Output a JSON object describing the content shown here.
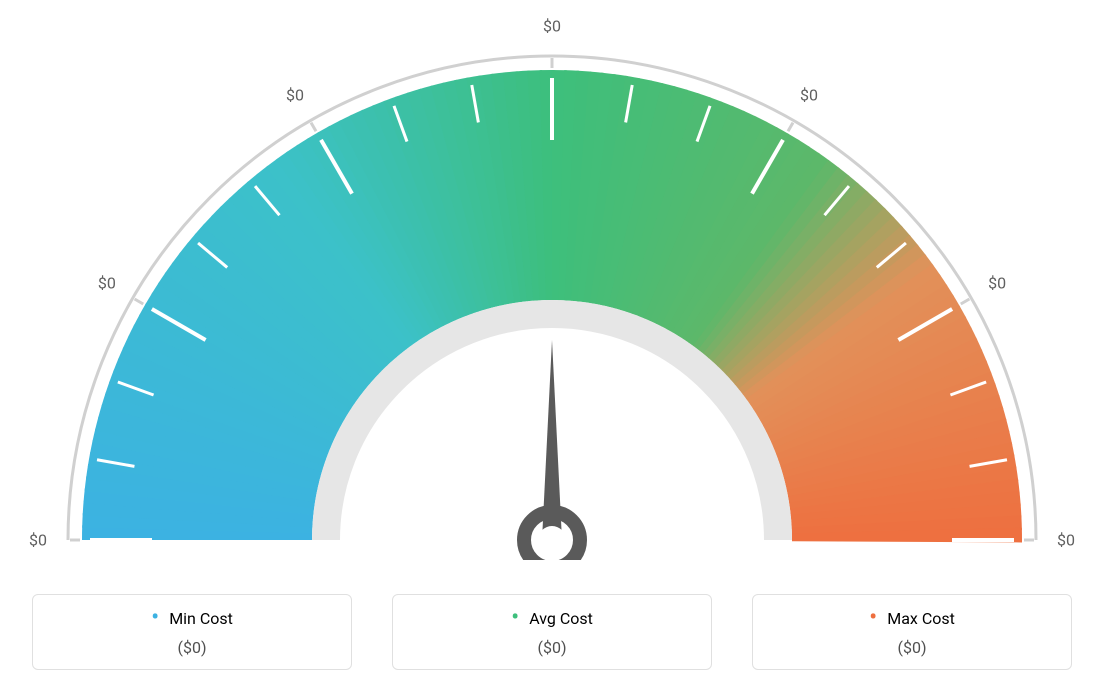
{
  "gauge": {
    "type": "gauge",
    "needle_value_deg": 90,
    "scale_labels": [
      "$0",
      "$0",
      "$0",
      "$0",
      "$0",
      "$0",
      "$0"
    ],
    "scale_label_color": "#606060",
    "scale_label_fontsize": 16,
    "gradient_stops": [
      {
        "pct": 0,
        "color": "#3cb2e2"
      },
      {
        "pct": 30,
        "color": "#3cc1c9"
      },
      {
        "pct": 50,
        "color": "#3dbf7c"
      },
      {
        "pct": 70,
        "color": "#5db86a"
      },
      {
        "pct": 80,
        "color": "#e2915a"
      },
      {
        "pct": 100,
        "color": "#ee6f3f"
      }
    ],
    "inner_ring_color": "#e6e6e6",
    "outer_arc_color": "#d0d0d0",
    "tick_color": "#ffffff",
    "needle_fill": "#5a5a5a",
    "background_color": "#ffffff",
    "major_tick_count": 7,
    "minor_ticks_between": 2,
    "arc_start_deg": 180,
    "arc_end_deg": 0,
    "outer_radius": 470,
    "inner_radius": 240
  },
  "legend": {
    "items": [
      {
        "label": "Min Cost",
        "value": "($0)",
        "color": "#3cb2e2"
      },
      {
        "label": "Avg Cost",
        "value": "($0)",
        "color": "#3dbf7c"
      },
      {
        "label": "Max Cost",
        "value": "($0)",
        "color": "#ee6f3f"
      }
    ],
    "label_fontsize": 16,
    "value_fontsize": 16,
    "value_color": "#505050",
    "border_color": "#e0e0e0"
  }
}
